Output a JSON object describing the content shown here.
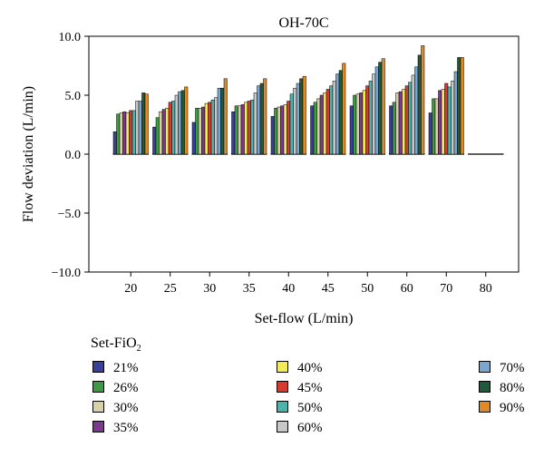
{
  "chart_data": {
    "type": "bar",
    "title": "OH-70C",
    "xlabel": "Set-flow (L/min)",
    "ylabel": "Flow deviation (L/min)",
    "ylim": [
      -10.0,
      10.0
    ],
    "yticks": [
      "10.0",
      "5.0",
      "0.0",
      "−5.0",
      "−10.0"
    ],
    "ytick_values": [
      10,
      5,
      0,
      -5,
      -10
    ],
    "categories": [
      "20",
      "25",
      "30",
      "35",
      "40",
      "45",
      "50",
      "60",
      "70",
      "80"
    ],
    "legend_title": "Set-FiO",
    "legend_title_sub": "2",
    "legend_placement": "bottom",
    "grid": false,
    "series": [
      {
        "name": "21%",
        "color": "#3a3f9a",
        "values": [
          1.9,
          2.3,
          2.7,
          3.6,
          3.2,
          4.1,
          4.1,
          4.1,
          3.5,
          0.0
        ]
      },
      {
        "name": "26%",
        "color": "#3f9a46",
        "values": [
          3.4,
          3.1,
          3.9,
          4.1,
          3.9,
          4.4,
          5.0,
          4.4,
          4.7,
          0.0
        ]
      },
      {
        "name": "30%",
        "color": "#d8d1a8",
        "values": [
          3.5,
          3.6,
          3.9,
          4.1,
          4.0,
          4.7,
          5.1,
          5.2,
          4.7,
          0.0
        ]
      },
      {
        "name": "35%",
        "color": "#7b3a8c",
        "values": [
          3.6,
          3.8,
          4.0,
          4.2,
          4.1,
          5.0,
          5.2,
          5.3,
          5.4,
          0.0
        ]
      },
      {
        "name": "40%",
        "color": "#f2ec5a",
        "values": [
          3.5,
          3.9,
          4.3,
          4.4,
          4.2,
          5.2,
          5.4,
          5.5,
          5.5,
          0.0
        ]
      },
      {
        "name": "45%",
        "color": "#d63b2f",
        "values": [
          3.7,
          4.4,
          4.4,
          4.5,
          4.5,
          5.5,
          5.8,
          5.8,
          6.0,
          0.0
        ]
      },
      {
        "name": "50%",
        "color": "#4fb2ad",
        "values": [
          3.7,
          4.5,
          4.6,
          4.6,
          5.1,
          5.8,
          6.2,
          6.1,
          5.7,
          0.0
        ]
      },
      {
        "name": "60%",
        "color": "#c8c8c8",
        "values": [
          4.5,
          5.0,
          4.8,
          5.2,
          5.6,
          6.2,
          6.8,
          6.7,
          6.2,
          0.0
        ]
      },
      {
        "name": "70%",
        "color": "#7aa7d1",
        "values": [
          4.5,
          5.3,
          5.6,
          5.8,
          6.0,
          6.8,
          7.4,
          7.4,
          7.0,
          0.0
        ]
      },
      {
        "name": "80%",
        "color": "#1f5a3c",
        "values": [
          5.2,
          5.4,
          5.6,
          6.0,
          6.4,
          7.1,
          7.8,
          8.4,
          8.2,
          0.0
        ]
      },
      {
        "name": "90%",
        "color": "#e08a26",
        "values": [
          5.1,
          5.7,
          6.4,
          6.4,
          6.6,
          7.7,
          8.1,
          9.2,
          8.2,
          0.0
        ]
      }
    ]
  }
}
